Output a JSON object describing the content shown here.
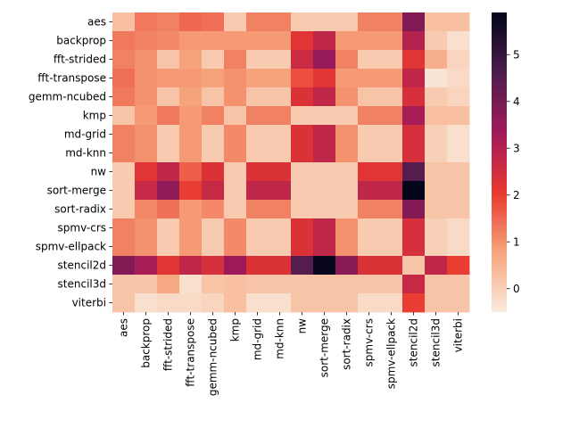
{
  "chart_data": {
    "type": "heatmap",
    "title": "",
    "xlabel": "",
    "ylabel": "",
    "rows": [
      "aes",
      "backprop",
      "fft-strided",
      "fft-transpose",
      "gemm-ncubed",
      "kmp",
      "md-grid",
      "md-knn",
      "nw",
      "sort-merge",
      "sort-radix",
      "spmv-crs",
      "spmv-ellpack",
      "stencil2d",
      "stencil3d",
      "viterbi"
    ],
    "columns": [
      "aes",
      "backprop",
      "fft-strided",
      "fft-transpose",
      "gemm-ncubed",
      "kmp",
      "md-grid",
      "md-knn",
      "nw",
      "sort-merge",
      "sort-radix",
      "spmv-crs",
      "spmv-ellpack",
      "stencil2d",
      "stencil3d",
      "viterbi"
    ],
    "values": [
      [
        0.3,
        1.3,
        1.2,
        1.5,
        1.4,
        0.1,
        1.2,
        1.2,
        0.1,
        0.1,
        0.1,
        1.2,
        1.2,
        3.8,
        0.3,
        0.3
      ],
      [
        1.3,
        1.2,
        1.1,
        0.9,
        0.9,
        0.9,
        0.9,
        0.9,
        2.2,
        2.8,
        0.9,
        0.9,
        0.9,
        3.0,
        0.1,
        -0.3
      ],
      [
        1.2,
        1.0,
        0.2,
        0.8,
        0.1,
        1.2,
        0.1,
        0.1,
        2.6,
        3.5,
        1.2,
        0.1,
        0.1,
        2.2,
        0.6,
        -0.1
      ],
      [
        1.4,
        1.0,
        0.9,
        0.9,
        0.8,
        1.0,
        0.8,
        0.8,
        1.8,
        2.2,
        0.9,
        0.9,
        0.9,
        2.8,
        -0.4,
        -0.2
      ],
      [
        1.3,
        1.0,
        0.2,
        0.8,
        0.2,
        1.0,
        0.2,
        0.2,
        2.3,
        2.8,
        1.0,
        0.2,
        0.2,
        2.4,
        0.1,
        -0.1
      ],
      [
        0.2,
        0.9,
        1.3,
        0.9,
        1.2,
        0.2,
        1.2,
        1.2,
        0.1,
        0.1,
        0.1,
        1.2,
        1.2,
        3.2,
        0.3,
        0.3
      ],
      [
        1.2,
        1.0,
        0.1,
        0.9,
        0.1,
        1.1,
        0.1,
        0.1,
        2.3,
        2.8,
        1.0,
        0.1,
        0.1,
        2.4,
        0.0,
        -0.3
      ],
      [
        1.2,
        1.0,
        0.1,
        0.9,
        0.1,
        1.1,
        0.1,
        0.1,
        2.3,
        2.8,
        1.0,
        0.1,
        0.1,
        2.4,
        0.0,
        -0.3
      ],
      [
        0.1,
        2.2,
        2.8,
        1.6,
        2.3,
        0.1,
        2.3,
        2.3,
        0.1,
        0.1,
        0.1,
        2.2,
        2.2,
        4.5,
        0.2,
        0.2
      ],
      [
        0.1,
        2.7,
        3.6,
        2.0,
        2.7,
        0.1,
        2.8,
        2.8,
        0.1,
        0.1,
        0.1,
        2.8,
        2.8,
        5.9,
        0.2,
        0.2
      ],
      [
        0.1,
        1.1,
        1.4,
        0.9,
        1.1,
        0.1,
        1.2,
        1.2,
        0.1,
        0.1,
        0.1,
        1.2,
        1.2,
        3.8,
        0.2,
        0.2
      ],
      [
        1.2,
        1.0,
        0.1,
        0.9,
        0.1,
        1.1,
        0.1,
        0.1,
        2.3,
        2.8,
        1.0,
        0.1,
        0.1,
        2.4,
        0.0,
        -0.2
      ],
      [
        1.2,
        1.0,
        0.1,
        0.9,
        0.1,
        1.1,
        0.1,
        0.1,
        2.3,
        2.8,
        1.0,
        0.1,
        0.1,
        2.4,
        0.0,
        -0.2
      ],
      [
        3.8,
        3.2,
        2.2,
        2.8,
        2.4,
        3.4,
        2.3,
        2.3,
        4.5,
        5.8,
        3.7,
        2.3,
        2.3,
        0.2,
        2.8,
        2.0
      ],
      [
        0.2,
        0.2,
        0.7,
        -0.3,
        0.2,
        0.3,
        0.2,
        0.2,
        0.2,
        0.2,
        0.2,
        0.2,
        0.2,
        2.7,
        0.2,
        0.2
      ],
      [
        0.2,
        -0.3,
        -0.2,
        -0.2,
        -0.1,
        0.3,
        -0.3,
        -0.3,
        0.2,
        0.2,
        0.2,
        -0.2,
        -0.2,
        2.0,
        0.2,
        0.2
      ]
    ],
    "colorbar": {
      "min": -0.5,
      "max": 5.9,
      "ticks": [
        0,
        1,
        2,
        3,
        4,
        5
      ],
      "colormap": "rocket_r"
    },
    "colormap_stops": [
      "#faebdd",
      "#f6a47c",
      "#e8382f",
      "#a11a5b",
      "#4c1d4b",
      "#03051a"
    ]
  }
}
